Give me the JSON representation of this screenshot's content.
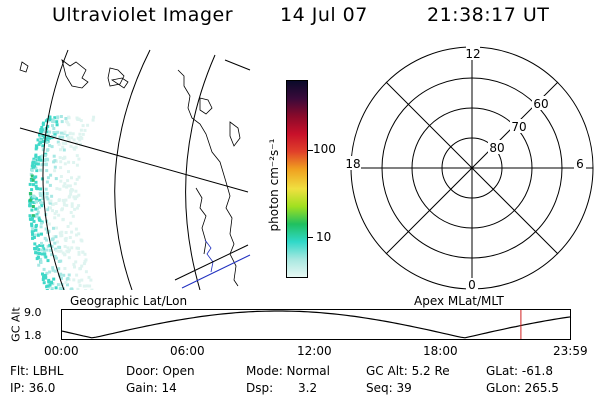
{
  "header": {
    "title": "Ultraviolet Imager",
    "date": "14 Jul 07",
    "time": "21:38:17 UT"
  },
  "colorbar": {
    "unit_label": "photon cm⁻²s⁻¹",
    "ticks": [
      "100",
      "10"
    ],
    "colors": [
      "#0a0a2a",
      "#3a0a3a",
      "#8a0a2a",
      "#c8102a",
      "#e0402a",
      "#f0a020",
      "#f0e040",
      "#a0e020",
      "#20c060",
      "#30d8c8",
      "#a8e8e0",
      "#e8f8f4"
    ]
  },
  "polar_plot": {
    "mlt_labels": {
      "top": "12",
      "bottom": "0",
      "left": "18",
      "right": "6"
    },
    "lat_labels": [
      "60",
      "70",
      "80"
    ]
  },
  "map_labels": {
    "left": "Geographic Lat/Lon",
    "right": "Apex MLat/MLT"
  },
  "alt_plot": {
    "ylabel": "GC Alt",
    "yticks": [
      "9.0",
      "1.8"
    ],
    "xticks": [
      "00:00",
      "06:00",
      "12:00",
      "18:00",
      "23:59"
    ],
    "marker_color": "#d02020"
  },
  "info": {
    "flt": "Flt: LBHL",
    "ip": "IP: 36.0",
    "door": "Door: Open",
    "gain": "Gain: 14",
    "mode": "Mode: Normal",
    "dsp_label": "Dsp:",
    "dsp_value": "3.2",
    "gcalt": "GC Alt: 5.2 Re",
    "seq": "Seq: 39",
    "glat": "GLat: -61.8",
    "glon": "GLon: 265.5"
  }
}
